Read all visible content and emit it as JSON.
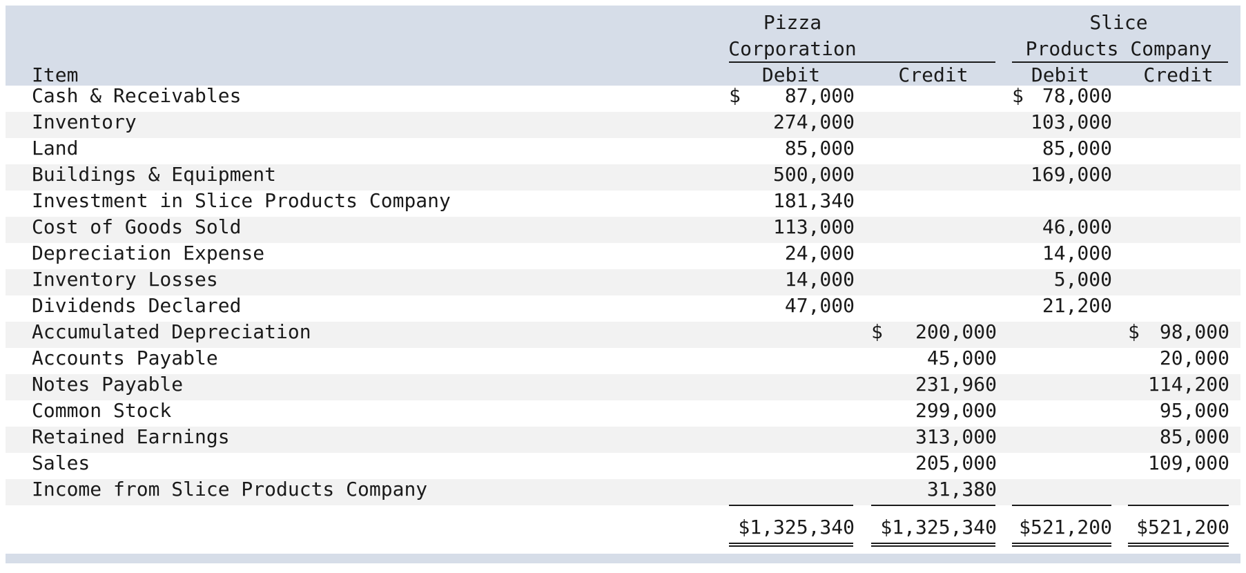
{
  "header": {
    "item": "Item",
    "pizza_line1": "Pizza",
    "pizza_line2": "Corporation",
    "slice_line1": "Slice",
    "slice_line2": "Products Company",
    "debit": "Debit",
    "credit": "Credit"
  },
  "rows": [
    {
      "item": "Cash & Receivables",
      "pd": "87,000",
      "pd_sym": "$",
      "pc": "",
      "pc_sym": "",
      "sd": "78,000",
      "sd_sym": "$",
      "sc": "",
      "sc_sym": ""
    },
    {
      "item": "Inventory",
      "pd": "274,000",
      "pd_sym": "",
      "pc": "",
      "pc_sym": "",
      "sd": "103,000",
      "sd_sym": "",
      "sc": "",
      "sc_sym": ""
    },
    {
      "item": "Land",
      "pd": "85,000",
      "pd_sym": "",
      "pc": "",
      "pc_sym": "",
      "sd": "85,000",
      "sd_sym": "",
      "sc": "",
      "sc_sym": ""
    },
    {
      "item": "Buildings & Equipment",
      "pd": "500,000",
      "pd_sym": "",
      "pc": "",
      "pc_sym": "",
      "sd": "169,000",
      "sd_sym": "",
      "sc": "",
      "sc_sym": ""
    },
    {
      "item": "Investment in Slice Products Company",
      "pd": "181,340",
      "pd_sym": "",
      "pc": "",
      "pc_sym": "",
      "sd": "",
      "sd_sym": "",
      "sc": "",
      "sc_sym": ""
    },
    {
      "item": "Cost of Goods Sold",
      "pd": "113,000",
      "pd_sym": "",
      "pc": "",
      "pc_sym": "",
      "sd": "46,000",
      "sd_sym": "",
      "sc": "",
      "sc_sym": ""
    },
    {
      "item": "Depreciation Expense",
      "pd": "24,000",
      "pd_sym": "",
      "pc": "",
      "pc_sym": "",
      "sd": "14,000",
      "sd_sym": "",
      "sc": "",
      "sc_sym": ""
    },
    {
      "item": "Inventory Losses",
      "pd": "14,000",
      "pd_sym": "",
      "pc": "",
      "pc_sym": "",
      "sd": "5,000",
      "sd_sym": "",
      "sc": "",
      "sc_sym": ""
    },
    {
      "item": "Dividends Declared",
      "pd": "47,000",
      "pd_sym": "",
      "pc": "",
      "pc_sym": "",
      "sd": "21,200",
      "sd_sym": "",
      "sc": "",
      "sc_sym": ""
    },
    {
      "item": "Accumulated Depreciation",
      "pd": "",
      "pd_sym": "",
      "pc": "200,000",
      "pc_sym": "$",
      "sd": "",
      "sd_sym": "",
      "sc": "98,000",
      "sc_sym": "$"
    },
    {
      "item": "Accounts Payable",
      "pd": "",
      "pd_sym": "",
      "pc": "45,000",
      "pc_sym": "",
      "sd": "",
      "sd_sym": "",
      "sc": "20,000",
      "sc_sym": ""
    },
    {
      "item": "Notes Payable",
      "pd": "",
      "pd_sym": "",
      "pc": "231,960",
      "pc_sym": "",
      "sd": "",
      "sd_sym": "",
      "sc": "114,200",
      "sc_sym": ""
    },
    {
      "item": "Common Stock",
      "pd": "",
      "pd_sym": "",
      "pc": "299,000",
      "pc_sym": "",
      "sd": "",
      "sd_sym": "",
      "sc": "95,000",
      "sc_sym": ""
    },
    {
      "item": "Retained Earnings",
      "pd": "",
      "pd_sym": "",
      "pc": "313,000",
      "pc_sym": "",
      "sd": "",
      "sd_sym": "",
      "sc": "85,000",
      "sc_sym": ""
    },
    {
      "item": "Sales",
      "pd": "",
      "pd_sym": "",
      "pc": "205,000",
      "pc_sym": "",
      "sd": "",
      "sd_sym": "",
      "sc": "109,000",
      "sc_sym": ""
    },
    {
      "item": "Income from Slice Products Company",
      "pd": "",
      "pd_sym": "",
      "pc": "31,380",
      "pc_sym": "",
      "sd": "",
      "sd_sym": "",
      "sc": "",
      "sc_sym": ""
    }
  ],
  "totals": {
    "pizza_debit": "$1,325,340",
    "pizza_credit": "$1,325,340",
    "slice_debit": "$521,200",
    "slice_credit": "$521,200"
  }
}
